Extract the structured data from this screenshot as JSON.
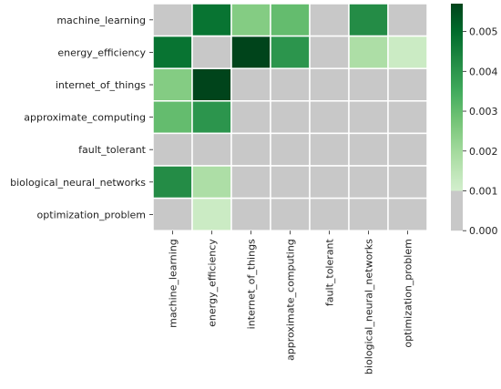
{
  "chart_data": {
    "type": "heatmap",
    "title": "",
    "xlabel": "",
    "ylabel": "",
    "rows": [
      "machine_learning",
      "energy_efficiency",
      "internet_of_things",
      "approximate_computing",
      "fault_tolerant",
      "biological_neural_networks",
      "optimization_problem"
    ],
    "columns": [
      "machine_learning",
      "energy_efficiency",
      "internet_of_things",
      "approximate_computing",
      "fault_tolerant",
      "biological_neural_networks",
      "optimization_problem"
    ],
    "values": [
      [
        0,
        0.0048,
        0.0025,
        0.003,
        0,
        0.0042,
        0
      ],
      [
        0.0048,
        0,
        0.0057,
        0.004,
        0,
        0.0018,
        0.0012
      ],
      [
        0.0025,
        0.0057,
        0,
        0,
        0,
        0,
        0
      ],
      [
        0.003,
        0.004,
        0,
        0,
        0,
        0,
        0
      ],
      [
        0,
        0,
        0,
        0,
        0,
        0,
        0
      ],
      [
        0.0042,
        0.0018,
        0,
        0,
        0,
        0,
        0
      ],
      [
        0,
        0.0012,
        0,
        0,
        0,
        0,
        0
      ]
    ],
    "zero_color": "#c8c8c8",
    "colormap": "Greens",
    "colorbar": {
      "vmin": 0.0,
      "vmax": 0.0057,
      "threshold": 0.001,
      "ticks": [
        "0.000",
        "0.001",
        "0.002",
        "0.003",
        "0.004",
        "0.005"
      ],
      "tick_values": [
        0.0,
        0.001,
        0.002,
        0.003,
        0.004,
        0.005
      ]
    },
    "grid": true,
    "legend": "colorbar-right"
  }
}
